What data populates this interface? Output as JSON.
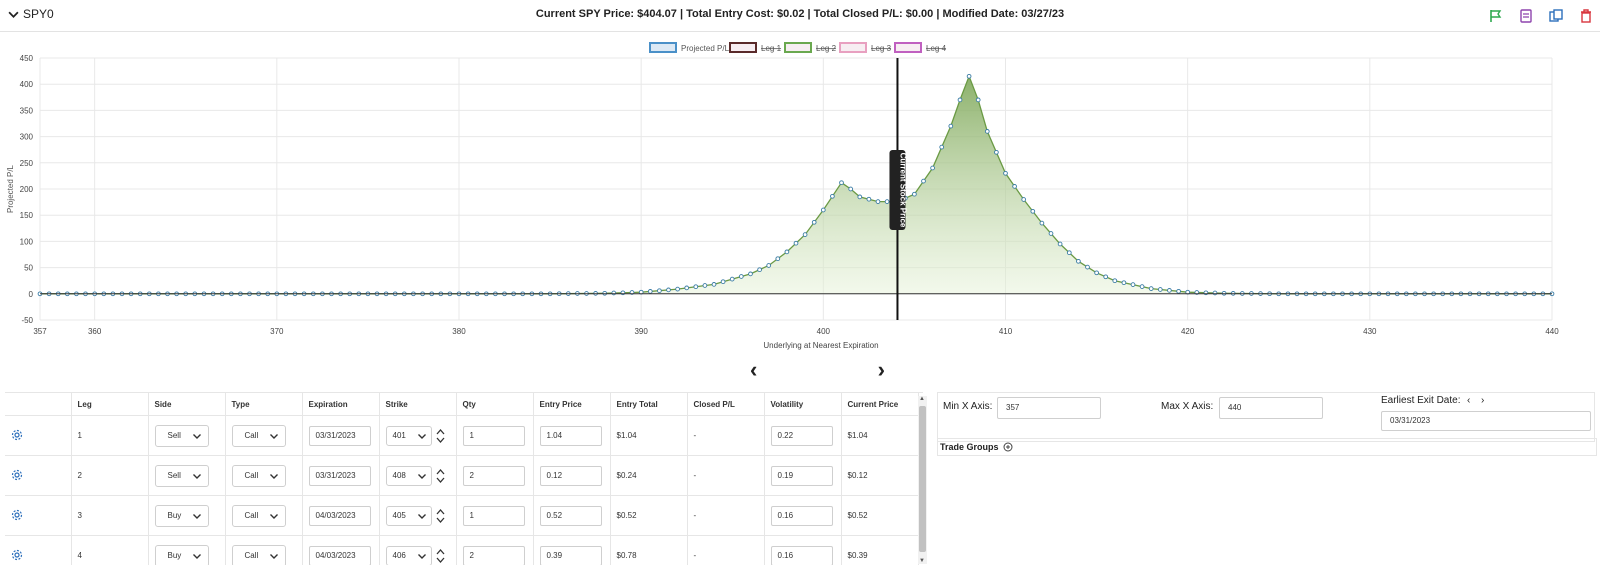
{
  "header": {
    "toggle_label": "SPY0",
    "summary": "Current SPY Price: $404.07 | Total Entry Cost: $0.02 | Total Closed P/L: $0.00 | Modified Date: 03/27/23",
    "actions": [
      "flag-icon",
      "notes-icon",
      "copy-icon",
      "trash-icon"
    ]
  },
  "chart_data": {
    "type": "area",
    "ylabel": "Projected P/L",
    "xlabel": "Underlying at Nearest Expiration",
    "xlim": [
      357,
      440
    ],
    "ylim": [
      -50,
      450
    ],
    "xticks": [
      "357",
      "360",
      "370",
      "380",
      "390",
      "400",
      "410",
      "420",
      "430",
      "440"
    ],
    "yticks": [
      "-50",
      "0",
      "50",
      "100",
      "150",
      "200",
      "250",
      "300",
      "350",
      "400",
      "450"
    ],
    "legend": [
      "Projected P/L",
      "Leg 1",
      "Leg 2",
      "Leg 3",
      "Leg 4"
    ],
    "legend_colors": [
      "#4a90c8",
      "#5a2a2a",
      "#6aa84f",
      "#e8a0c0",
      "#c060c0"
    ],
    "current_price_label": "Current Stock Price",
    "current_price": 404.07,
    "series": [
      {
        "name": "Projected P/L",
        "x": [
          357,
          360,
          365,
          370,
          375,
          380,
          385,
          388,
          390,
          392,
          394,
          396,
          397,
          398,
          399,
          400,
          400.5,
          401,
          401.5,
          402,
          403,
          404,
          404.07,
          405,
          406,
          407,
          407.5,
          408,
          408.5,
          409,
          410,
          411,
          412,
          413,
          414,
          415,
          416,
          418,
          420,
          422,
          425,
          430,
          435,
          440
        ],
        "values": [
          0,
          0,
          0,
          0,
          0,
          0,
          0,
          1,
          3,
          9,
          18,
          38,
          54,
          80,
          113,
          160,
          186,
          212,
          200,
          185,
          176,
          176,
          176,
          190,
          240,
          320,
          370,
          415,
          370,
          310,
          230,
          180,
          135,
          95,
          62,
          40,
          25,
          10,
          3,
          1,
          0,
          0,
          0,
          0
        ]
      }
    ]
  },
  "pager": {
    "prev_label": "‹",
    "next_label": "›"
  },
  "legs_table": {
    "columns": [
      "",
      "Leg",
      "Side",
      "Type",
      "Expiration",
      "Strike",
      "Qty",
      "Entry Price",
      "Entry Total",
      "Closed P/L",
      "Volatility",
      "Current Price"
    ],
    "rows": [
      {
        "leg": "1",
        "side": "Sell",
        "type": "Call",
        "expiration": "03/31/2023",
        "strike": "401",
        "qty": "1",
        "entry_price": "1.04",
        "entry_total": "$1.04",
        "closed_pl": "-",
        "volatility": "0.22",
        "current_price": "$1.04"
      },
      {
        "leg": "2",
        "side": "Sell",
        "type": "Call",
        "expiration": "03/31/2023",
        "strike": "408",
        "qty": "2",
        "entry_price": "0.12",
        "entry_total": "$0.24",
        "closed_pl": "-",
        "volatility": "0.19",
        "current_price": "$0.12"
      },
      {
        "leg": "3",
        "side": "Buy",
        "type": "Call",
        "expiration": "04/03/2023",
        "strike": "405",
        "qty": "1",
        "entry_price": "0.52",
        "entry_total": "$0.52",
        "closed_pl": "-",
        "volatility": "0.16",
        "current_price": "$0.52"
      },
      {
        "leg": "4",
        "side": "Buy",
        "type": "Call",
        "expiration": "04/03/2023",
        "strike": "406",
        "qty": "2",
        "entry_price": "0.39",
        "entry_total": "$0.78",
        "closed_pl": "-",
        "volatility": "0.16",
        "current_price": "$0.39"
      }
    ]
  },
  "axis_controls": {
    "min_label": "Min X Axis:",
    "min_value": "357",
    "max_label": "Max X Axis:",
    "max_value": "440",
    "exit_label": "Earliest Exit Date:",
    "exit_value": "03/31/2023"
  },
  "trade_groups": {
    "label": "Trade Groups"
  }
}
